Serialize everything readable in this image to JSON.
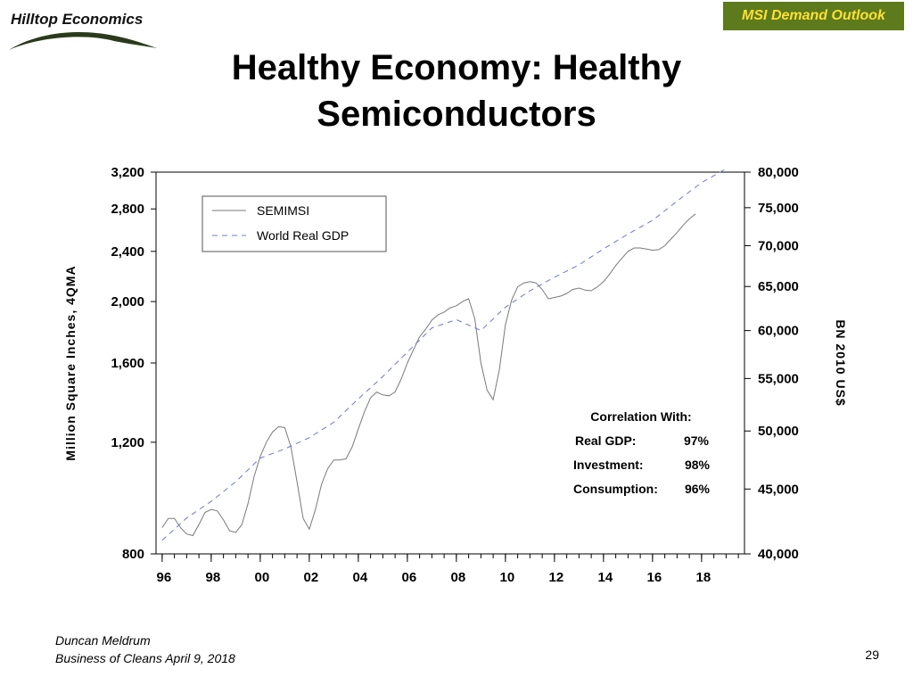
{
  "header": {
    "logo_text": "Hilltop Economics",
    "badge_label": "MSI Demand Outlook",
    "badge_colors": {
      "background": "#5d7a1c",
      "text": "#ffe033"
    }
  },
  "title_lines": [
    "Healthy Economy: Healthy",
    "Semiconductors"
  ],
  "chart_data": {
    "type": "line",
    "x_tick_labels": [
      "96",
      "98",
      "00",
      "02",
      "04",
      "06",
      "08",
      "10",
      "12",
      "14",
      "16",
      "18"
    ],
    "x_tick_years": [
      1996,
      1998,
      2000,
      2002,
      2004,
      2006,
      2008,
      2010,
      2012,
      2014,
      2016,
      2018
    ],
    "xlim": [
      1995.75,
      2019.75
    ],
    "left_axis": {
      "label": "Million Square Inches, 4QMA",
      "scale": "log",
      "ylim": [
        800,
        3200
      ],
      "ticks": [
        800,
        1200,
        1600,
        2000,
        2400,
        2800,
        3200
      ],
      "tick_labels": [
        "800",
        "1,200",
        "1,600",
        "2,000",
        "2,400",
        "2,800",
        "3,200"
      ]
    },
    "right_axis": {
      "label": "BN 2010 US$",
      "scale": "log",
      "ylim": [
        40000,
        80000
      ],
      "ticks": [
        40000,
        45000,
        50000,
        55000,
        60000,
        65000,
        70000,
        75000,
        80000
      ],
      "tick_labels": [
        "40,000",
        "45,000",
        "50,000",
        "55,000",
        "60,000",
        "65,000",
        "70,000",
        "75,000",
        "80,000"
      ]
    },
    "legend_position": "top-left",
    "series": [
      {
        "name": "SEMIMSI",
        "axis": "left",
        "style": "solid",
        "color": "#7a7a7a",
        "points": [
          [
            1996.0,
            880
          ],
          [
            1996.25,
            910
          ],
          [
            1996.5,
            910
          ],
          [
            1996.75,
            880
          ],
          [
            1997.0,
            860
          ],
          [
            1997.25,
            855
          ],
          [
            1997.5,
            890
          ],
          [
            1997.75,
            930
          ],
          [
            1998.0,
            940
          ],
          [
            1998.25,
            935
          ],
          [
            1998.5,
            905
          ],
          [
            1998.75,
            870
          ],
          [
            1999.0,
            865
          ],
          [
            1999.25,
            890
          ],
          [
            1999.5,
            960
          ],
          [
            1999.75,
            1060
          ],
          [
            2000.0,
            1140
          ],
          [
            2000.25,
            1200
          ],
          [
            2000.5,
            1245
          ],
          [
            2000.75,
            1270
          ],
          [
            2001.0,
            1265
          ],
          [
            2001.25,
            1180
          ],
          [
            2001.5,
            1040
          ],
          [
            2001.75,
            910
          ],
          [
            2002.0,
            875
          ],
          [
            2002.25,
            940
          ],
          [
            2002.5,
            1030
          ],
          [
            2002.75,
            1090
          ],
          [
            2003.0,
            1125
          ],
          [
            2003.25,
            1125
          ],
          [
            2003.5,
            1130
          ],
          [
            2003.75,
            1180
          ],
          [
            2004.0,
            1260
          ],
          [
            2004.25,
            1340
          ],
          [
            2004.5,
            1410
          ],
          [
            2004.75,
            1440
          ],
          [
            2005.0,
            1425
          ],
          [
            2005.25,
            1420
          ],
          [
            2005.5,
            1440
          ],
          [
            2005.75,
            1510
          ],
          [
            2006.0,
            1600
          ],
          [
            2006.25,
            1680
          ],
          [
            2006.5,
            1760
          ],
          [
            2006.75,
            1810
          ],
          [
            2007.0,
            1870
          ],
          [
            2007.25,
            1905
          ],
          [
            2007.5,
            1925
          ],
          [
            2007.75,
            1955
          ],
          [
            2008.0,
            1970
          ],
          [
            2008.25,
            2000
          ],
          [
            2008.5,
            2020
          ],
          [
            2008.75,
            1880
          ],
          [
            2009.0,
            1600
          ],
          [
            2009.25,
            1450
          ],
          [
            2009.5,
            1400
          ],
          [
            2009.75,
            1560
          ],
          [
            2010.0,
            1840
          ],
          [
            2010.25,
            2010
          ],
          [
            2010.5,
            2110
          ],
          [
            2010.75,
            2140
          ],
          [
            2011.0,
            2150
          ],
          [
            2011.25,
            2140
          ],
          [
            2011.5,
            2090
          ],
          [
            2011.75,
            2020
          ],
          [
            2012.0,
            2030
          ],
          [
            2012.25,
            2040
          ],
          [
            2012.5,
            2060
          ],
          [
            2012.75,
            2090
          ],
          [
            2013.0,
            2100
          ],
          [
            2013.25,
            2085
          ],
          [
            2013.5,
            2080
          ],
          [
            2013.75,
            2110
          ],
          [
            2014.0,
            2150
          ],
          [
            2014.25,
            2210
          ],
          [
            2014.5,
            2280
          ],
          [
            2014.75,
            2340
          ],
          [
            2015.0,
            2400
          ],
          [
            2015.25,
            2430
          ],
          [
            2015.5,
            2430
          ],
          [
            2015.75,
            2420
          ],
          [
            2016.0,
            2410
          ],
          [
            2016.25,
            2415
          ],
          [
            2016.5,
            2450
          ],
          [
            2016.75,
            2510
          ],
          [
            2017.0,
            2570
          ],
          [
            2017.25,
            2640
          ],
          [
            2017.5,
            2700
          ],
          [
            2017.75,
            2750
          ]
        ]
      },
      {
        "name": "World Real GDP",
        "axis": "right",
        "style": "dashed",
        "color": "#6b78cc",
        "points": [
          [
            1996.0,
            41000
          ],
          [
            1997.0,
            42700
          ],
          [
            1998.0,
            44000
          ],
          [
            1999.0,
            45600
          ],
          [
            2000.0,
            47600
          ],
          [
            2001.0,
            48400
          ],
          [
            2002.0,
            49400
          ],
          [
            2003.0,
            50800
          ],
          [
            2004.0,
            53000
          ],
          [
            2005.0,
            55200
          ],
          [
            2006.0,
            57700
          ],
          [
            2007.0,
            60300
          ],
          [
            2008.0,
            61200
          ],
          [
            2009.0,
            60000
          ],
          [
            2010.0,
            62600
          ],
          [
            2011.0,
            64500
          ],
          [
            2012.0,
            66100
          ],
          [
            2013.0,
            67600
          ],
          [
            2014.0,
            69600
          ],
          [
            2015.0,
            71500
          ],
          [
            2016.0,
            73300
          ],
          [
            2017.0,
            75900
          ],
          [
            2018.0,
            78500
          ],
          [
            2019.0,
            80500
          ]
        ]
      }
    ],
    "annotation": {
      "title": "Correlation With:",
      "rows": [
        {
          "label": "Real GDP:",
          "value": "97%"
        },
        {
          "label": "Investment:",
          "value": "98%"
        },
        {
          "label": "Consumption:",
          "value": "96%"
        }
      ]
    }
  },
  "footer": {
    "author": "Duncan Meldrum",
    "event": "Business of Cleans April 9, 2018",
    "page_number": "29"
  }
}
